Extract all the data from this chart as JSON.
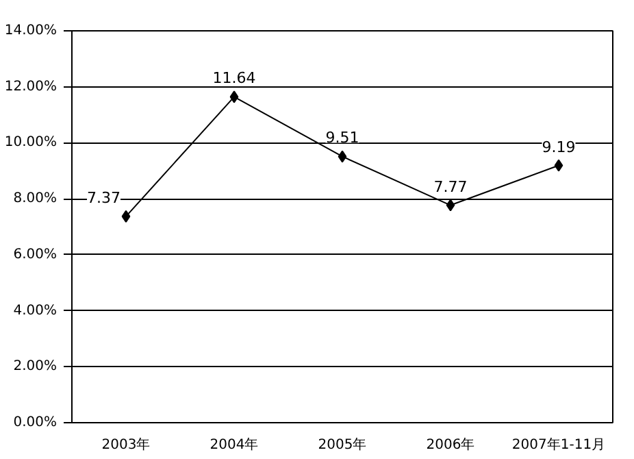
{
  "chart_data": {
    "type": "line",
    "categories": [
      "2003年",
      "2004年",
      "2005年",
      "2006年",
      "2007年1-11月"
    ],
    "series": [
      {
        "color": "#000000",
        "values": [
          7.37,
          11.64,
          9.51,
          7.77,
          9.19
        ]
      }
    ],
    "ylim": [
      0,
      14
    ],
    "yticks": [
      {
        "value": 0,
        "label": "0.00%"
      },
      {
        "value": 2,
        "label": "2.00%"
      },
      {
        "value": 4,
        "label": "4.00%"
      },
      {
        "value": 6,
        "label": "6.00%"
      },
      {
        "value": 8,
        "label": "8.00%"
      },
      {
        "value": 10,
        "label": "10.00%"
      },
      {
        "value": 12,
        "label": "12.00%"
      },
      {
        "value": 14,
        "label": "14.00%"
      }
    ],
    "grid": "y",
    "marker": "diamond",
    "line_style": "solid",
    "data_labels": true
  }
}
